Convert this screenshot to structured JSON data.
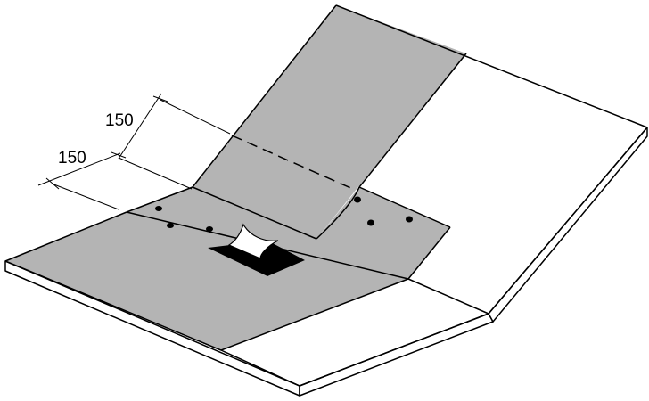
{
  "diagram": {
    "dimensions": [
      {
        "label": "150"
      },
      {
        "label": "150"
      }
    ],
    "colors": {
      "membrane": "#b4b4b4",
      "board": "#ffffff",
      "outline": "#000000",
      "opening": "#000000"
    }
  }
}
